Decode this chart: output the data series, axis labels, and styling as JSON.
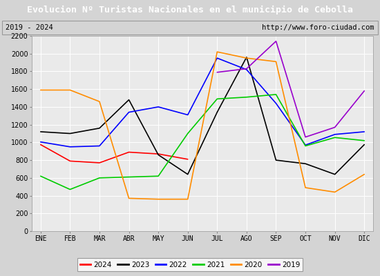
{
  "title": "Evolucion Nº Turistas Nacionales en el municipio de Cebolla",
  "subtitle_left": "2019 - 2024",
  "subtitle_right": "http://www.foro-ciudad.com",
  "months": [
    "ENE",
    "FEB",
    "MAR",
    "ABR",
    "MAY",
    "JUN",
    "JUL",
    "AGO",
    "SEP",
    "OCT",
    "NOV",
    "DIC"
  ],
  "ylim": [
    0,
    2200
  ],
  "yticks": [
    0,
    200,
    400,
    600,
    800,
    1000,
    1200,
    1400,
    1600,
    1800,
    2000,
    2200
  ],
  "series": {
    "2024": {
      "color": "#ff0000",
      "data": [
        975,
        790,
        770,
        890,
        870,
        810,
        null,
        null,
        null,
        null,
        null,
        null
      ]
    },
    "2023": {
      "color": "#000000",
      "data": [
        1120,
        1100,
        1160,
        1480,
        860,
        640,
        1340,
        1960,
        800,
        760,
        640,
        975
      ]
    },
    "2022": {
      "color": "#0000ff",
      "data": [
        1005,
        950,
        960,
        1340,
        1400,
        1310,
        1950,
        1820,
        1440,
        970,
        1090,
        1120
      ]
    },
    "2021": {
      "color": "#00cc00",
      "data": [
        620,
        470,
        600,
        610,
        620,
        1100,
        1490,
        1510,
        1540,
        960,
        1055,
        1020
      ]
    },
    "2020": {
      "color": "#ff8c00",
      "data": [
        1590,
        1590,
        1460,
        370,
        360,
        360,
        2020,
        1950,
        1910,
        490,
        440,
        640
      ]
    },
    "2019": {
      "color": "#9900cc",
      "data": [
        null,
        null,
        null,
        null,
        null,
        null,
        1790,
        1830,
        2140,
        1060,
        1170,
        1580
      ]
    }
  },
  "legend_order": [
    "2024",
    "2023",
    "2022",
    "2021",
    "2020",
    "2019"
  ],
  "title_bg_color": "#4c7abf",
  "title_text_color": "#ffffff",
  "plot_bg_color": "#eaeaea",
  "outer_bg_color": "#d4d4d4",
  "grid_color": "#ffffff",
  "title_fontsize": 9.5,
  "subtitle_fontsize": 7.5,
  "axis_label_fontsize": 7,
  "legend_fontsize": 7.5,
  "linewidth": 1.2
}
